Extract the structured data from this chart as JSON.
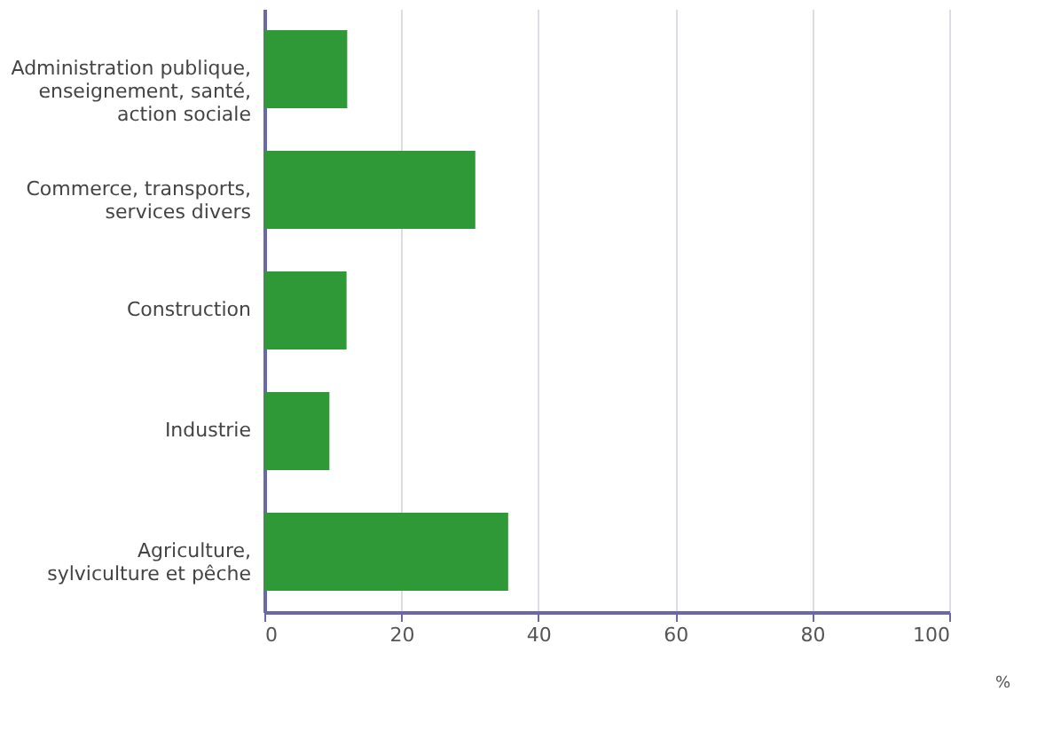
{
  "chart_data": {
    "type": "bar",
    "orientation": "horizontal",
    "categories": [
      "Administration publique, enseignement, santé, action sociale",
      "Commerce, transports, services divers",
      "Construction",
      "Industrie",
      "Agriculture, sylviculture et pêche"
    ],
    "values": [
      12.1,
      30.8,
      12.0,
      9.5,
      35.6
    ],
    "color": "#2e9936",
    "xlim": [
      0,
      100
    ],
    "xticks": [
      0,
      20,
      40,
      60,
      80,
      100
    ],
    "xlabel": "%",
    "grid": "x"
  }
}
